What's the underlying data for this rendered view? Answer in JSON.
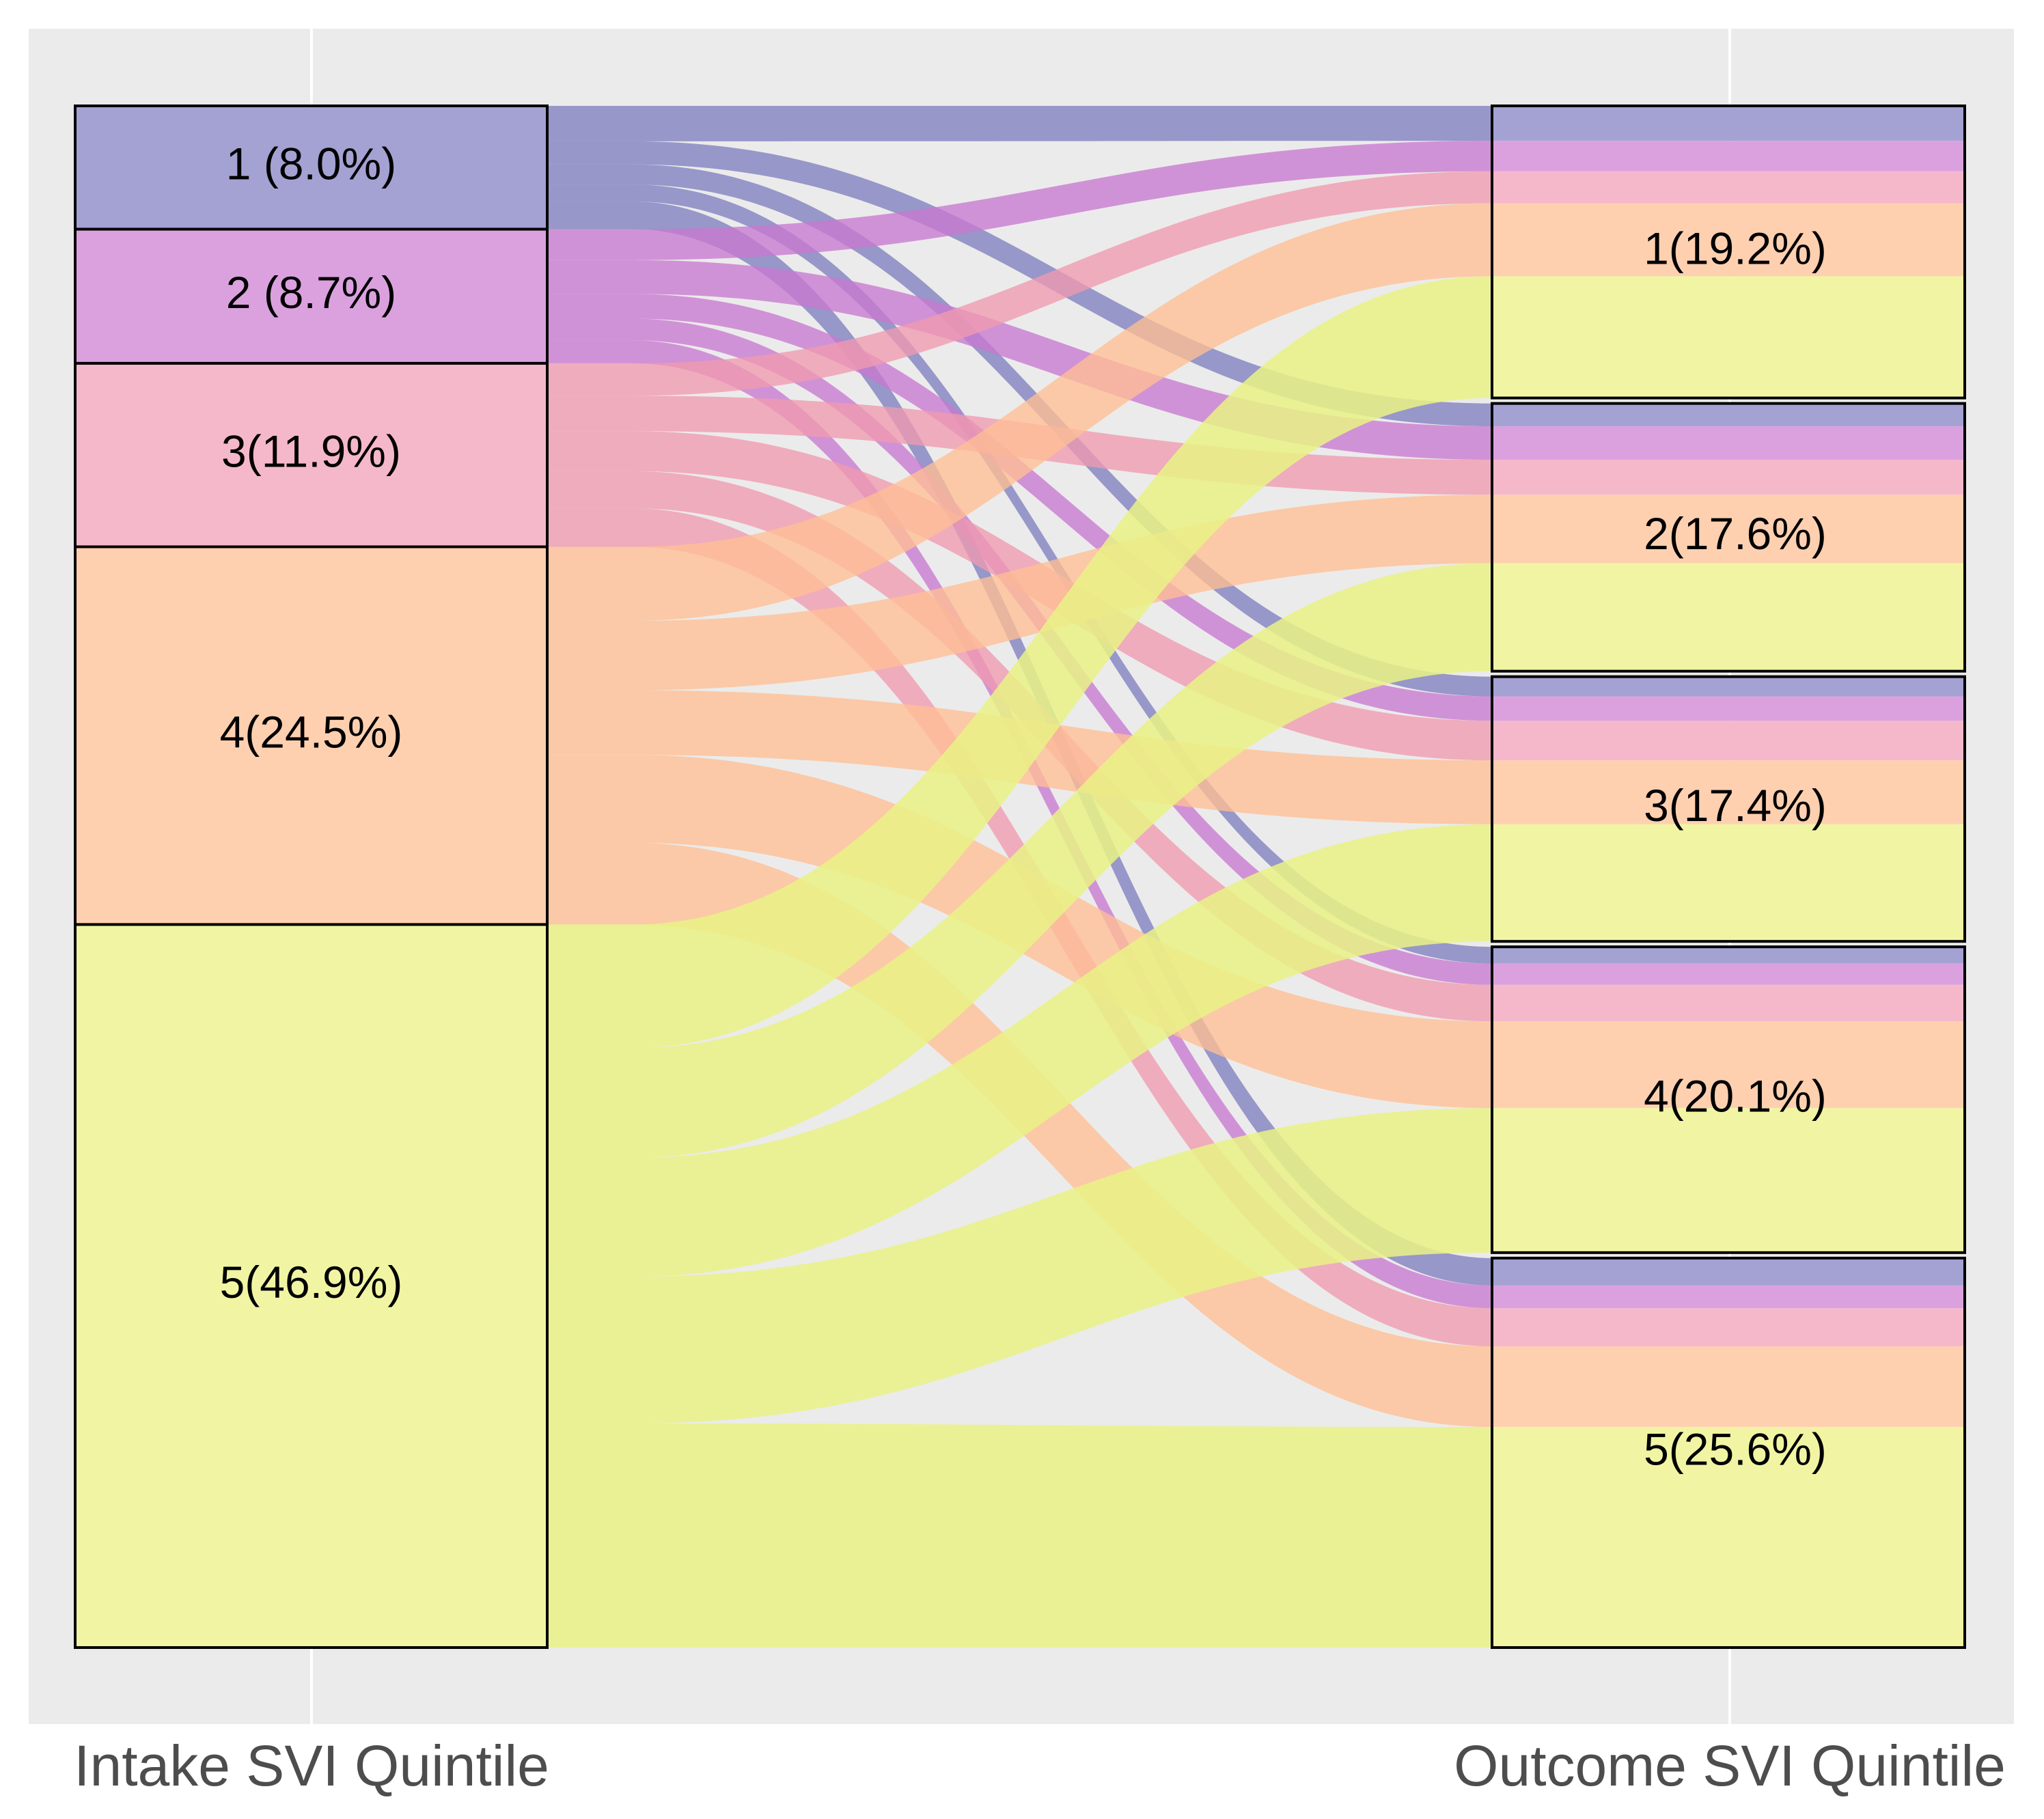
{
  "chart_data": {
    "type": "alluvial",
    "title": "",
    "axes": [
      "Intake SVI Quintile",
      "Outcome SVI Quintile"
    ],
    "intake_nodes": [
      {
        "id": "1",
        "label": "1 (8.0%)",
        "percent": 8.0,
        "color": "#7f7fbf"
      },
      {
        "id": "2",
        "label": "2 (8.7%)",
        "percent": 8.7,
        "color": "#c878cf"
      },
      {
        "id": "3",
        "label": "3(11.9%)",
        "percent": 11.9,
        "color": "#f09ab0"
      },
      {
        "id": "4",
        "label": "4(24.5%)",
        "percent": 24.5,
        "color": "#ffbf94"
      },
      {
        "id": "5",
        "label": "5(46.9%)",
        "percent": 46.9,
        "color": "#e9f285"
      }
    ],
    "outcome_nodes": [
      {
        "id": "1",
        "label": "1(19.2%)",
        "percent": 19.2
      },
      {
        "id": "2",
        "label": "2(17.6%)",
        "percent": 17.6
      },
      {
        "id": "3",
        "label": "3(17.4%)",
        "percent": 17.4
      },
      {
        "id": "4",
        "label": "4(20.1%)",
        "percent": 20.1
      },
      {
        "id": "5",
        "label": "5(25.6%)",
        "percent": 25.6
      }
    ],
    "flows_percent": [
      [
        2.3,
        1.5,
        1.3,
        1.1,
        1.8
      ],
      [
        2.0,
        2.2,
        1.6,
        1.4,
        1.5
      ],
      [
        2.1,
        2.3,
        2.6,
        2.4,
        2.5
      ],
      [
        4.8,
        4.5,
        4.2,
        5.7,
        5.3
      ],
      [
        8.0,
        7.1,
        7.7,
        9.5,
        14.5
      ]
    ],
    "colors": {
      "panel_background": "#ebebeb",
      "gridline": "#ffffff",
      "node_border": "#000000",
      "intake_fill": [
        "#a4a2d3",
        "#dba1df",
        "#f5b8cb",
        "#ffd0b0",
        "#f1f5a3"
      ],
      "flow_fill": [
        "#7f7fbf",
        "#c878cf",
        "#f09ab0",
        "#ffbf94",
        "#e9f285"
      ]
    }
  }
}
